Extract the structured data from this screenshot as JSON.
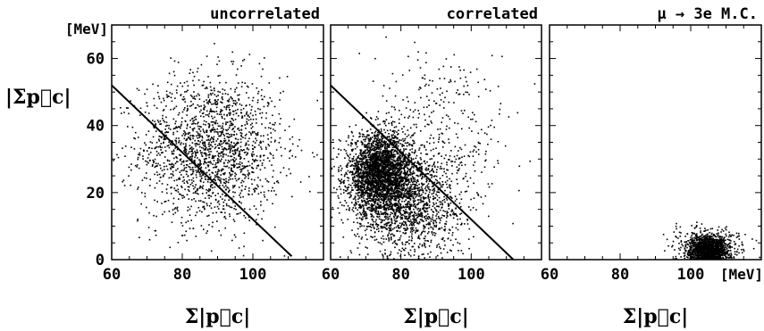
{
  "chart_data": [
    {
      "type": "scatter",
      "title": "uncorrelated",
      "xlim": [
        60,
        120
      ],
      "ylim": [
        0,
        70
      ],
      "xticks": [
        60,
        80,
        100
      ],
      "yticks": [
        0,
        20,
        40,
        60
      ],
      "xlabel": "Σ|p⃗c|",
      "ylabel": "|Σp⃗c|",
      "yunit": "[MeV]",
      "xunit": "",
      "cut_line": {
        "x1": 60,
        "y1": 52,
        "x2": 111,
        "y2": 1
      },
      "clusters": [
        {
          "cx": 88,
          "cy": 33,
          "sx": 10,
          "sy": 11,
          "n": 1800
        }
      ]
    },
    {
      "type": "scatter",
      "title": "correlated",
      "xlim": [
        60,
        120
      ],
      "ylim": [
        0,
        70
      ],
      "xticks": [
        60,
        80,
        100
      ],
      "yticks": [],
      "xlabel": "Σ|p⃗c|",
      "ylabel": "",
      "yunit": "",
      "xunit": "",
      "cut_line": {
        "x1": 60,
        "y1": 52,
        "x2": 112,
        "y2": 0
      },
      "clusters": [
        {
          "cx": 74,
          "cy": 26,
          "sx": 4.5,
          "sy": 6,
          "n": 2800
        },
        {
          "cx": 82,
          "cy": 17,
          "sx": 8,
          "sy": 8,
          "n": 1400
        },
        {
          "cx": 92,
          "cy": 40,
          "sx": 10,
          "sy": 12,
          "n": 300
        }
      ]
    },
    {
      "type": "scatter",
      "title": "μ → 3e M.C.",
      "xlim": [
        60,
        120
      ],
      "ylim": [
        0,
        70
      ],
      "xticks": [
        60,
        80,
        100
      ],
      "yticks": [],
      "xlabel": "Σ|p⃗c|",
      "ylabel": "",
      "yunit": "",
      "xunit": "[MeV]",
      "cut_line": null,
      "clusters": [
        {
          "cx": 105,
          "cy": 3,
          "sx": 3,
          "sy": 2.2,
          "n": 1500
        },
        {
          "cx": 104,
          "cy": 6,
          "sx": 6,
          "sy": 3,
          "n": 120
        }
      ]
    }
  ],
  "colors": {
    "points": "#000000",
    "frame": "#000000",
    "background": "#ffffff"
  }
}
